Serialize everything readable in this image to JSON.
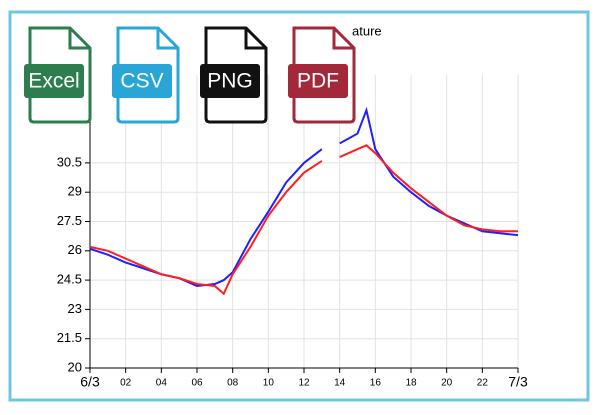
{
  "chart_data": {
    "type": "line",
    "title": "ature",
    "x": [
      0,
      1,
      2,
      3,
      4,
      5,
      6,
      7,
      7.5,
      8,
      9,
      10,
      11,
      12,
      13,
      13.5,
      14,
      15,
      15.5,
      16,
      17,
      18,
      19,
      20,
      21,
      22,
      23,
      24
    ],
    "series": [
      {
        "color": "#1f1fff",
        "values": [
          26.1,
          25.8,
          25.4,
          25.1,
          24.8,
          24.6,
          24.2,
          24.3,
          24.5,
          24.9,
          26.6,
          28.0,
          29.5,
          30.5,
          31.2,
          null,
          31.5,
          32.0,
          33.2,
          31.2,
          29.8,
          29.0,
          28.3,
          27.8,
          27.4,
          27.0,
          26.9,
          26.8
        ]
      },
      {
        "color": "#ff1f1f",
        "values": [
          26.2,
          26.0,
          25.6,
          25.2,
          24.8,
          24.6,
          24.3,
          24.2,
          23.8,
          24.8,
          26.2,
          27.8,
          29.0,
          30.0,
          30.6,
          null,
          30.8,
          31.2,
          31.4,
          31.0,
          30.0,
          29.2,
          28.5,
          27.8,
          27.3,
          27.1,
          27.0,
          27.0
        ]
      }
    ],
    "xlim": [
      0,
      24
    ],
    "xticks": [
      {
        "value": 0,
        "label": "6/3"
      },
      {
        "value": 2,
        "label": "02"
      },
      {
        "value": 4,
        "label": "04"
      },
      {
        "value": 6,
        "label": "06"
      },
      {
        "value": 8,
        "label": "08"
      },
      10,
      12,
      14,
      16,
      18,
      20,
      22,
      {
        "value": 24,
        "label": "7/3"
      }
    ],
    "ylim": [
      20,
      35
    ],
    "yticks": [
      20,
      21.5,
      23,
      24.5,
      26,
      27.5,
      29,
      30.5
    ],
    "grid": true
  },
  "buttons": [
    "Excel",
    "CSV",
    "PNG",
    "PDF"
  ]
}
